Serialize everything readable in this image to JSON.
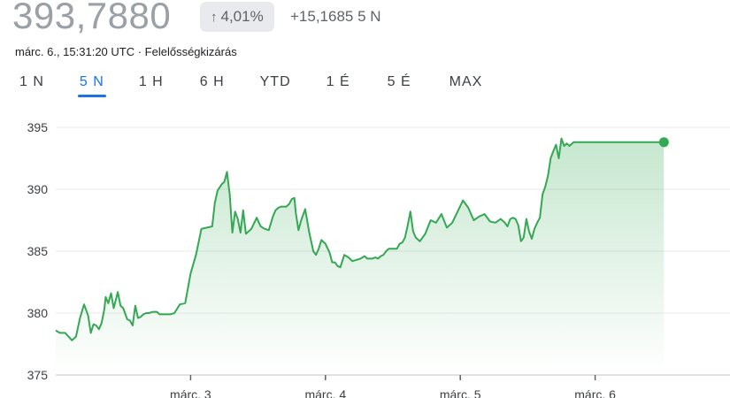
{
  "header": {
    "price": "393,7880",
    "change_percent": "4,01%",
    "change_arrow": "↑",
    "change_absolute": "+15,1685 5 N",
    "meta": "márc. 6., 15:31:20 UTC · Felelősségkizárás"
  },
  "tabs": [
    {
      "label": "1 N",
      "active": false
    },
    {
      "label": "5 N",
      "active": true
    },
    {
      "label": "1 H",
      "active": false
    },
    {
      "label": "6 H",
      "active": false
    },
    {
      "label": "YTD",
      "active": false
    },
    {
      "label": "1 É",
      "active": false
    },
    {
      "label": "5 É",
      "active": false
    },
    {
      "label": "MAX",
      "active": false
    }
  ],
  "colors": {
    "line": "#34a853",
    "grid": "#e8eaed",
    "axis_text": "#3c4043",
    "active_tab": "#1a73e8"
  },
  "chart_data": {
    "type": "line",
    "ylim": [
      375,
      395
    ],
    "y_ticks": [
      "375",
      "380",
      "385",
      "390",
      "395"
    ],
    "x_ticks": [
      {
        "label": "márc. 3",
        "x": 1.0
      },
      {
        "label": "márc. 4",
        "x": 2.0
      },
      {
        "label": "márc. 5",
        "x": 3.0
      },
      {
        "label": "márc. 6",
        "x": 4.0
      }
    ],
    "xlim": [
      0.0,
      5.0
    ],
    "grid": true,
    "series": [
      {
        "x": [
          0.0,
          0.03,
          0.07,
          0.12,
          0.15,
          0.18,
          0.21,
          0.24,
          0.26,
          0.28,
          0.3,
          0.32,
          0.34,
          0.36,
          0.37,
          0.39,
          0.41,
          0.43,
          0.46,
          0.48,
          0.5,
          0.53,
          0.55,
          0.57,
          0.59,
          0.61,
          0.63,
          0.65,
          0.67,
          0.69,
          0.72,
          0.75,
          0.77,
          0.79,
          0.81,
          0.83,
          0.85,
          0.88,
          0.92,
          0.96,
          1.0,
          1.04,
          1.08,
          1.12,
          1.16,
          1.18,
          1.2,
          1.23,
          1.25,
          1.27,
          1.29,
          1.31,
          1.33,
          1.35,
          1.37,
          1.39,
          1.41,
          1.45,
          1.49,
          1.52,
          1.55,
          1.58,
          1.61,
          1.63,
          1.65,
          1.67,
          1.69,
          1.71,
          1.73,
          1.75,
          1.77,
          1.78,
          1.8,
          1.82,
          1.85,
          1.88,
          1.91,
          1.93,
          1.95,
          1.97,
          2.0,
          2.03,
          2.05,
          2.07,
          2.09,
          2.11,
          2.14,
          2.17,
          2.2,
          2.23,
          2.26,
          2.29,
          2.31,
          2.33,
          2.35,
          2.37,
          2.39,
          2.41,
          2.43,
          2.45,
          2.47,
          2.49,
          2.51,
          2.53,
          2.55,
          2.57,
          2.59,
          2.61,
          2.63,
          2.65,
          2.67,
          2.7,
          2.74,
          2.78,
          2.82,
          2.86,
          2.9,
          2.94,
          2.98,
          3.02,
          3.06,
          3.1,
          3.14,
          3.18,
          3.22,
          3.26,
          3.3,
          3.33,
          3.35,
          3.37,
          3.39,
          3.41,
          3.43,
          3.45,
          3.47,
          3.49,
          3.51,
          3.53,
          3.55,
          3.57,
          3.59,
          3.61,
          3.63,
          3.65,
          3.67,
          3.69,
          3.71,
          3.73,
          3.75,
          3.77,
          3.79,
          3.81,
          3.84,
          3.87,
          3.9,
          3.93,
          3.96,
          4.0,
          4.03,
          4.06,
          4.09,
          4.12,
          4.15,
          4.18,
          4.21,
          4.24,
          4.27,
          4.3,
          4.33,
          4.35,
          4.37,
          4.39,
          4.41,
          4.43,
          4.45,
          4.47,
          4.49,
          4.51,
          4.53,
          4.55,
          4.57,
          4.59,
          4.61
        ],
        "values": [
          378.6,
          378.4,
          378.4,
          377.8,
          378.1,
          379.6,
          380.7,
          379.8,
          378.4,
          379.1,
          379.0,
          378.7,
          379.2,
          380.3,
          381.3,
          380.8,
          381.6,
          380.4,
          381.7,
          380.6,
          380.4,
          379.5,
          379.4,
          379.0,
          380.6,
          379.6,
          379.7,
          379.9,
          380.0,
          380.0,
          380.1,
          380.1,
          379.9,
          379.9,
          379.9,
          379.9,
          379.9,
          380.0,
          380.7,
          380.8,
          383.2,
          384.7,
          386.8,
          386.9,
          387.0,
          388.9,
          389.9,
          390.4,
          390.6,
          391.4,
          389.6,
          386.5,
          388.2,
          387.6,
          386.5,
          388.3,
          386.4,
          386.8,
          387.7,
          387.0,
          386.8,
          386.7,
          387.8,
          388.3,
          388.5,
          388.6,
          388.6,
          388.6,
          388.8,
          389.2,
          389.3,
          388.1,
          386.7,
          387.5,
          388.4,
          386.5,
          385.0,
          384.7,
          385.2,
          385.9,
          385.6,
          384.9,
          384.1,
          384.1,
          383.8,
          383.7,
          384.7,
          384.5,
          384.2,
          384.3,
          384.4,
          384.6,
          384.4,
          384.4,
          384.4,
          384.5,
          384.4,
          384.6,
          384.7,
          385.0,
          385.2,
          385.2,
          385.2,
          385.2,
          385.6,
          385.7,
          386.1,
          387.1,
          388.2,
          386.6,
          386.1,
          385.8,
          386.4,
          387.5,
          387.3,
          388.0,
          386.9,
          387.3,
          388.2,
          389.1,
          388.5,
          387.5,
          387.8,
          388.0,
          387.4,
          387.3,
          387.6,
          387.3,
          387.0,
          387.6,
          387.7,
          387.6,
          387.1,
          385.8,
          386.1,
          387.6,
          386.6,
          386.0,
          386.8,
          387.3,
          387.7,
          389.6,
          390.2,
          391.1,
          392.5,
          393.1,
          393.6,
          392.5,
          394.1,
          393.5,
          393.7,
          393.5,
          393.8,
          393.8,
          393.8,
          393.8,
          393.8,
          393.8,
          393.8,
          393.8,
          393.8,
          393.8,
          393.8,
          393.8,
          393.8,
          393.8,
          393.8,
          393.8,
          393.8,
          393.8,
          393.8,
          393.8,
          393.8,
          393.8,
          393.8,
          393.8,
          393.8,
          393.8,
          393.8,
          393.8,
          393.8,
          393.8,
          393.8
        ]
      }
    ]
  }
}
